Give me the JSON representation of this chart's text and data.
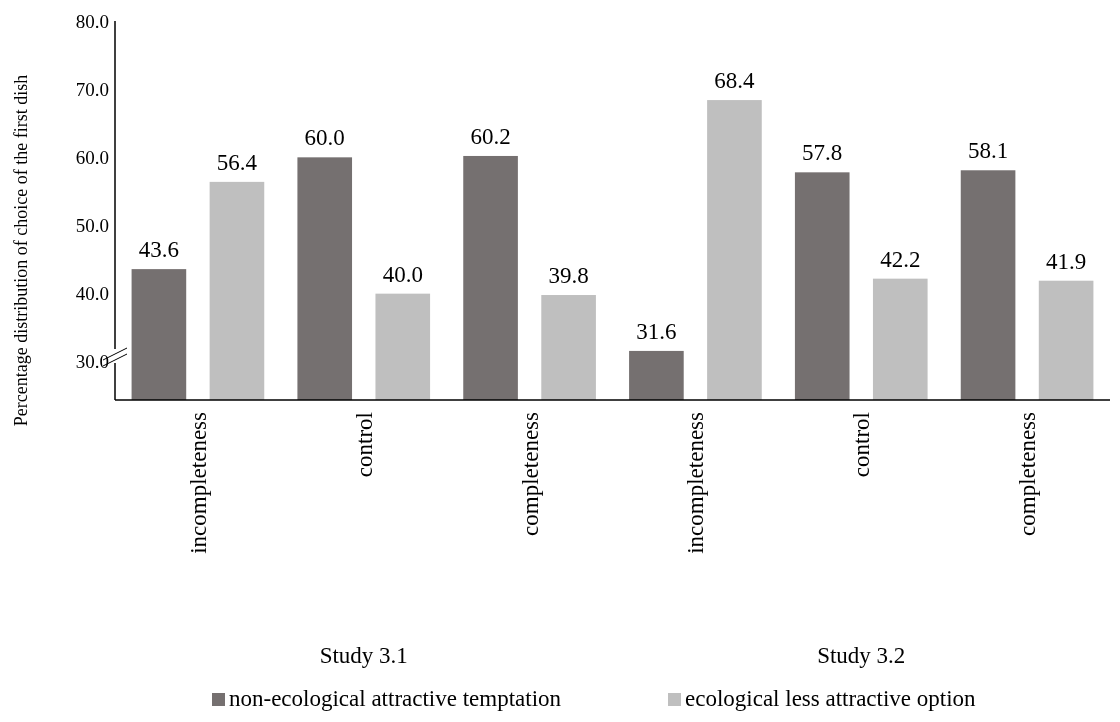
{
  "chart_data": {
    "type": "bar",
    "ylabel": "Percentage distribution of choice of the first dish",
    "categories": [
      "incompleteness",
      "control",
      "completeness",
      "incompleteness",
      "control",
      "completeness"
    ],
    "series": [
      {
        "name": "non-ecological attractive temptation",
        "color": "#757070",
        "values": [
          43.6,
          60.0,
          60.2,
          31.6,
          57.8,
          58.1
        ],
        "value_labels": [
          "43.6",
          "60.0",
          "60.2",
          "31.6",
          "57.8",
          "58.1"
        ]
      },
      {
        "name": "ecological less attractive option",
        "color": "#bfbfbf",
        "values": [
          56.4,
          40.0,
          39.8,
          68.4,
          42.2,
          41.9
        ],
        "value_labels": [
          "56.4",
          "40.0",
          "39.8",
          "68.4",
          "42.2",
          "41.9"
        ]
      }
    ],
    "ylim": [
      24.4,
      80
    ],
    "yticks": [
      {
        "value": 30,
        "label": "30.0"
      },
      {
        "value": 40,
        "label": "40.0"
      },
      {
        "value": 50,
        "label": "50.0"
      },
      {
        "value": 60,
        "label": "60.0"
      },
      {
        "value": 70,
        "label": "70.0"
      },
      {
        "value": 80,
        "label": "80.0"
      }
    ],
    "grid": false,
    "legend": "bottom",
    "annotations": [
      "Study 3.1",
      "Study 3.2"
    ]
  }
}
